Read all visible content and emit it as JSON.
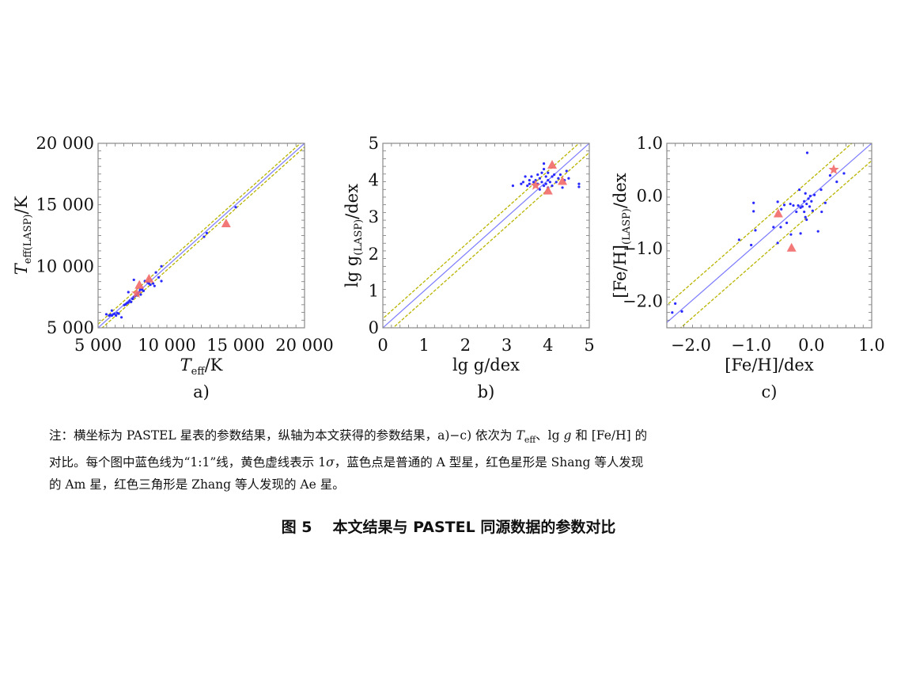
{
  "colors": {
    "one_to_one": "#7b7bff",
    "sigma": "#b9b400",
    "normal_a": "#2a2aff",
    "am_ae": "#f26a6a",
    "frame": "#888888"
  },
  "chart_data": [
    {
      "type": "scatter",
      "panel_label": "a)",
      "xlabel": {
        "main": "T",
        "sub": "eff",
        "suffix": "/K"
      },
      "ylabel": {
        "main": "T",
        "sub": "eff(LASP)",
        "suffix": "/K"
      },
      "xlim": [
        5000,
        20000
      ],
      "ylim": [
        5000,
        20000
      ],
      "xticks": [
        5000,
        10000,
        15000,
        20000
      ],
      "xtick_labels": [
        "5 000",
        "10 000",
        "15 000",
        "20 000"
      ],
      "yticks": [
        5000,
        10000,
        15000,
        20000
      ],
      "ytick_labels": [
        "5 000",
        "10 000",
        "15 000",
        "20 000"
      ],
      "sigma": 300,
      "series": [
        {
          "name": "normal A stars",
          "marker": "dot",
          "points": [
            [
              5600,
              6100
            ],
            [
              5800,
              6000
            ],
            [
              5900,
              6050
            ],
            [
              6000,
              6000
            ],
            [
              6100,
              6100
            ],
            [
              6200,
              6150
            ],
            [
              6300,
              6000
            ],
            [
              6000,
              6400
            ],
            [
              6500,
              6150
            ],
            [
              6700,
              5850
            ],
            [
              6400,
              6200
            ],
            [
              6900,
              6850
            ],
            [
              7000,
              6900
            ],
            [
              7100,
              7000
            ],
            [
              7200,
              7050
            ],
            [
              7300,
              7200
            ],
            [
              7400,
              7100
            ],
            [
              7500,
              7350
            ],
            [
              7600,
              7500
            ],
            [
              7700,
              7600
            ],
            [
              7200,
              7900
            ],
            [
              7600,
              8900
            ],
            [
              7900,
              7800
            ],
            [
              8000,
              7900
            ],
            [
              8100,
              7700
            ],
            [
              8200,
              8100
            ],
            [
              8300,
              8000
            ],
            [
              8400,
              8800
            ],
            [
              8600,
              8700
            ],
            [
              8800,
              8500
            ],
            [
              9000,
              8600
            ],
            [
              9100,
              8400
            ],
            [
              9200,
              9500
            ],
            [
              9400,
              9100
            ],
            [
              9600,
              8800
            ],
            [
              9600,
              10000
            ],
            [
              12700,
              12400
            ],
            [
              12900,
              12700
            ],
            [
              15000,
              14800
            ],
            [
              8700,
              8600
            ],
            [
              7800,
              7650
            ],
            [
              8050,
              8100
            ]
          ]
        },
        {
          "name": "Am stars (Shang et al.)",
          "marker": "star",
          "points": [
            [
              7800,
              7800
            ]
          ]
        },
        {
          "name": "Ae stars (Zhang et al.)",
          "marker": "triangle",
          "points": [
            [
              8000,
              8500
            ],
            [
              8700,
              9000
            ],
            [
              14300,
              13500
            ]
          ]
        }
      ]
    },
    {
      "type": "scatter",
      "panel_label": "b)",
      "xlabel": {
        "main": "lg g",
        "sub": "",
        "suffix": "/dex"
      },
      "ylabel": {
        "main": "lg g",
        "sub": "(LASP)",
        "suffix": "/dex"
      },
      "xlim": [
        0,
        5
      ],
      "ylim": [
        0,
        5
      ],
      "xticks": [
        0,
        1,
        2,
        3,
        4,
        5
      ],
      "xtick_labels": [
        "0",
        "1",
        "2",
        "3",
        "4",
        "5"
      ],
      "yticks": [
        0,
        1,
        2,
        3,
        4,
        5
      ],
      "ytick_labels": [
        "0",
        "1",
        "2",
        "3",
        "4",
        "5"
      ],
      "sigma": 0.25,
      "series": [
        {
          "name": "normal A stars",
          "marker": "dot",
          "points": [
            [
              3.15,
              3.85
            ],
            [
              3.35,
              3.9
            ],
            [
              3.4,
              3.95
            ],
            [
              3.45,
              4.1
            ],
            [
              3.5,
              3.85
            ],
            [
              3.55,
              4.0
            ],
            [
              3.55,
              3.9
            ],
            [
              3.6,
              4.1
            ],
            [
              3.65,
              3.95
            ],
            [
              3.7,
              4.0
            ],
            [
              3.75,
              3.9
            ],
            [
              3.8,
              3.75
            ],
            [
              3.8,
              4.05
            ],
            [
              3.85,
              3.95
            ],
            [
              3.85,
              4.2
            ],
            [
              3.9,
              4.3
            ],
            [
              3.9,
              4.45
            ],
            [
              3.9,
              3.85
            ],
            [
              3.95,
              4.1
            ],
            [
              3.95,
              3.9
            ],
            [
              4.0,
              4.0
            ],
            [
              4.0,
              3.8
            ],
            [
              4.0,
              4.2
            ],
            [
              4.05,
              3.95
            ],
            [
              4.1,
              4.1
            ],
            [
              4.15,
              4.15
            ],
            [
              4.2,
              3.95
            ],
            [
              4.25,
              4.05
            ],
            [
              4.3,
              4.15
            ],
            [
              4.35,
              3.8
            ],
            [
              4.4,
              4.0
            ],
            [
              4.45,
              4.25
            ],
            [
              4.5,
              4.05
            ],
            [
              3.75,
              4.15
            ],
            [
              4.1,
              3.85
            ],
            [
              4.75,
              3.9
            ],
            [
              4.75,
              3.82
            ]
          ]
        },
        {
          "name": "Am stars (Shang et al.)",
          "marker": "star",
          "points": [
            [
              3.7,
              3.86
            ]
          ]
        },
        {
          "name": "Ae stars (Zhang et al.)",
          "marker": "triangle",
          "points": [
            [
              4.1,
              4.42
            ],
            [
              4.0,
              3.72
            ],
            [
              4.35,
              3.98
            ]
          ]
        }
      ]
    },
    {
      "type": "scatter",
      "panel_label": "c)",
      "xlabel": {
        "main": "[Fe/H]",
        "sub": "",
        "suffix": "/dex"
      },
      "ylabel": {
        "main": "[Fe/H]",
        "sub": "(LASP)",
        "suffix": "/dex"
      },
      "xlim": [
        -2.4,
        1.0
      ],
      "ylim": [
        -2.5,
        1.0
      ],
      "xticks": [
        -2.0,
        -1.0,
        0.0,
        1.0
      ],
      "xtick_labels": [
        "−2.0",
        "−1.0",
        "0.0",
        "1.0"
      ],
      "yticks": [
        -2.0,
        -1.0,
        0.0,
        1.0
      ],
      "ytick_labels": [
        "−2.0",
        "−1.0",
        "0.0",
        "1.0"
      ],
      "sigma": 0.33,
      "series": [
        {
          "name": "normal A stars",
          "marker": "dot",
          "points": [
            [
              -0.07,
              0.82
            ],
            [
              -0.96,
              -0.13
            ],
            [
              -0.96,
              -0.29
            ],
            [
              -1.2,
              -0.83
            ],
            [
              -1.0,
              -0.93
            ],
            [
              -0.93,
              -0.65
            ],
            [
              -2.31,
              -2.21
            ],
            [
              -2.26,
              -2.04
            ],
            [
              -2.15,
              -2.19
            ],
            [
              -0.56,
              -0.11
            ],
            [
              -0.51,
              -0.59
            ],
            [
              -0.63,
              -0.59
            ],
            [
              -0.56,
              -0.89
            ],
            [
              -0.41,
              -0.51
            ],
            [
              -0.34,
              -0.73
            ],
            [
              -0.18,
              -0.71
            ],
            [
              0.11,
              -0.67
            ],
            [
              0.31,
              0.39
            ],
            [
              0.42,
              0.27
            ],
            [
              0.54,
              0.43
            ],
            [
              0.16,
              0.12
            ],
            [
              0.23,
              -0.13
            ],
            [
              0.17,
              -0.3
            ],
            [
              -0.2,
              0.12
            ],
            [
              -0.22,
              -0.18
            ],
            [
              -0.18,
              -0.22
            ],
            [
              -0.15,
              -0.2
            ],
            [
              -0.12,
              -0.1
            ],
            [
              -0.1,
              0.05
            ],
            [
              -0.08,
              -0.15
            ],
            [
              -0.05,
              -0.05
            ],
            [
              -0.02,
              0.0
            ],
            [
              0.0,
              -0.1
            ],
            [
              0.02,
              -0.28
            ],
            [
              -0.3,
              -0.18
            ],
            [
              -0.25,
              -0.3
            ],
            [
              -0.35,
              -0.15
            ],
            [
              -0.45,
              -0.17
            ],
            [
              -0.5,
              -0.25
            ],
            [
              -0.1,
              -0.4
            ],
            [
              -0.08,
              -0.45
            ],
            [
              0.05,
              0.02
            ],
            [
              -0.12,
              -0.3
            ],
            [
              -0.03,
              -0.2
            ]
          ]
        },
        {
          "name": "Am stars (Shang et al.)",
          "marker": "star",
          "points": [
            [
              0.37,
              0.5
            ]
          ]
        },
        {
          "name": "Ae stars (Zhang et al.)",
          "marker": "triangle",
          "points": [
            [
              -0.55,
              -0.33
            ],
            [
              -0.33,
              -0.98
            ]
          ]
        }
      ]
    }
  ],
  "caption": {
    "line1_a": "注：横坐标为 PASTEL 星表的参数结果，纵轴为本文获得的参数结果，a)−c) 依次为 ",
    "teff_main": "T",
    "teff_sub": "eff",
    "line1_b": "、lg ",
    "g": "g",
    "line1_c": " 和 [Fe/H] 的",
    "line2": "对比。每个图中蓝色线为“1:1”线，黄色虚线表示 1",
    "sigma_sym": "σ",
    "line2_b": "，蓝色点是普通的 A 型星，红色星形是 Shang 等人发现",
    "line3": "的 Am 星，红色三角形是 Zhang 等人发现的 Ae 星。"
  },
  "figure_title": {
    "number": "图 5",
    "text": "本文结果与 PASTEL 同源数据的参数对比"
  }
}
